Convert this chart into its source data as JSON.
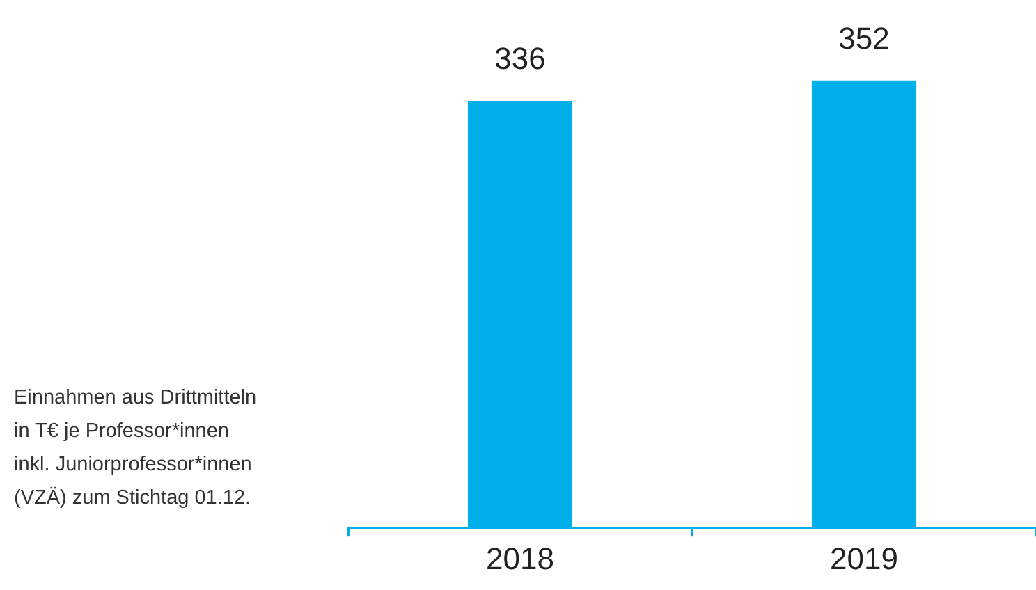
{
  "chart_data": {
    "type": "bar",
    "categories": [
      "2018",
      "2019"
    ],
    "values": [
      336,
      352
    ],
    "color": "#00aee9",
    "data_labels": true,
    "grid": false,
    "legend": false,
    "tick_labels": "x",
    "annotations": [
      "Einnahmen aus Drittmitteln\nin T€ je Professor*innen\ninkl. Juniorprofessor*innen\n(VZÄ) zum Stichtag 01.12."
    ]
  }
}
